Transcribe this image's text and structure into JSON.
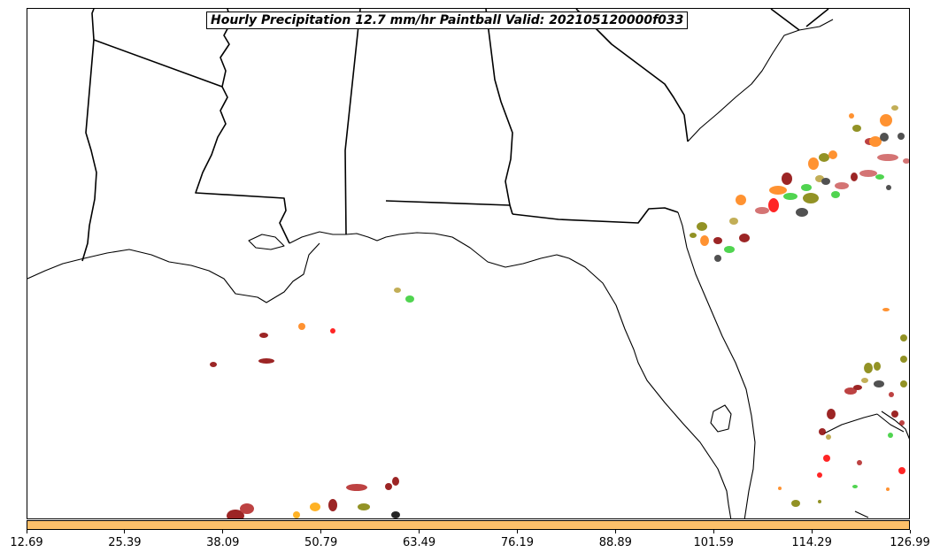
{
  "title": "Hourly Precipitation 12.7 mm/hr Paintball Valid: 202105120000f033",
  "colorbar": {
    "color": "#fdc06a",
    "ticks": [
      "12.69",
      "25.39",
      "38.09",
      "50.79",
      "63.49",
      "76.19",
      "88.89",
      "101.59",
      "114.29",
      "126.99"
    ]
  },
  "colors": {
    "coastline": "#000000",
    "state_border": "#000000",
    "member_colors": [
      "#8b0000",
      "#b22222",
      "#ff0000",
      "#ff7f0e",
      "#ffa500",
      "#32cd32",
      "#808000",
      "#b8a03a",
      "#333333",
      "#cd5c5c"
    ]
  }
}
